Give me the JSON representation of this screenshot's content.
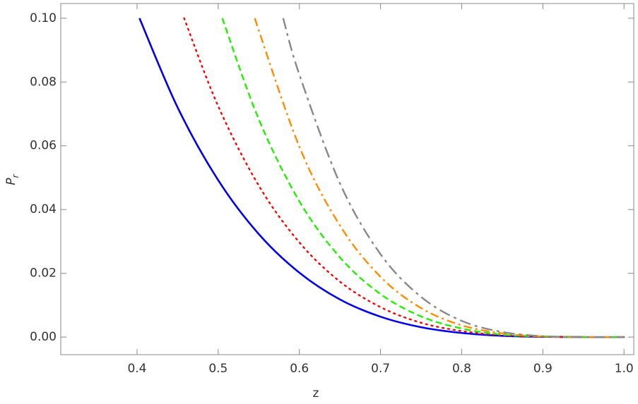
{
  "chart_data": {
    "type": "line",
    "x_label": "z",
    "y_label": "P",
    "y_label_subscript": "r",
    "xlim": [
      0.306,
      1.012
    ],
    "ylim": [
      -0.0055,
      0.1046
    ],
    "xticks": [
      0.4,
      0.5,
      0.6,
      0.7,
      0.8,
      0.9,
      {
        "value": 1,
        "label": "1.0"
      }
    ],
    "yticks": [
      {
        "value": 0,
        "label": "0.00"
      },
      {
        "value": 0.02,
        "label": "0.02"
      },
      {
        "value": 0.04,
        "label": "0.04"
      },
      {
        "value": 0.06,
        "label": "0.06"
      },
      {
        "value": 0.08,
        "label": "0.08"
      },
      {
        "value": 0.1,
        "label": "0.10"
      }
    ],
    "series": [
      {
        "color": "#0000ee",
        "dash": "solid",
        "x": [
          0.403,
          0.45,
          0.5,
          0.55,
          0.6,
          0.65,
          0.7,
          0.75,
          0.8,
          0.85,
          0.9,
          0.95,
          1.0
        ],
        "values": [
          0.1,
          0.072,
          0.0492,
          0.0323,
          0.0202,
          0.0118,
          0.0064,
          0.0031,
          0.0013,
          0.0004,
          0.0001,
          0,
          0
        ]
      },
      {
        "color": "#ff0000",
        "dash": "dotted",
        "x": [
          0.458,
          0.5,
          0.55,
          0.6,
          0.65,
          0.7,
          0.75,
          0.8,
          0.85,
          0.9,
          0.95,
          1.0
        ],
        "values": [
          0.1,
          0.0724,
          0.0475,
          0.0297,
          0.0174,
          0.0094,
          0.0045,
          0.0019,
          0.0006,
          0.0001,
          0,
          0
        ]
      },
      {
        "color": "#22ee00",
        "dash": "dashed",
        "x": [
          0.505,
          0.55,
          0.6,
          0.65,
          0.7,
          0.75,
          0.8,
          0.85,
          0.9,
          0.95,
          1.0
        ],
        "values": [
          0.1,
          0.0683,
          0.0426,
          0.025,
          0.0135,
          0.0065,
          0.0027,
          0.0008,
          0.0002,
          0,
          0
        ]
      },
      {
        "color": "#ff8c00",
        "dash": "dashdot",
        "x": [
          0.545,
          0.6,
          0.65,
          0.7,
          0.75,
          0.8,
          0.85,
          0.9,
          0.95,
          1.0
        ],
        "values": [
          0.1,
          0.0597,
          0.035,
          0.0189,
          0.0091,
          0.0037,
          0.0012,
          0.0002,
          0,
          0
        ]
      },
      {
        "color": "#888888",
        "dash": "longdashdot",
        "x": [
          0.58,
          0.6,
          0.65,
          0.7,
          0.75,
          0.8,
          0.85,
          0.9,
          0.95,
          1.0
        ],
        "values": [
          0.1,
          0.0823,
          0.0482,
          0.026,
          0.0126,
          0.0051,
          0.0016,
          0.0003,
          0,
          0
        ]
      }
    ]
  }
}
